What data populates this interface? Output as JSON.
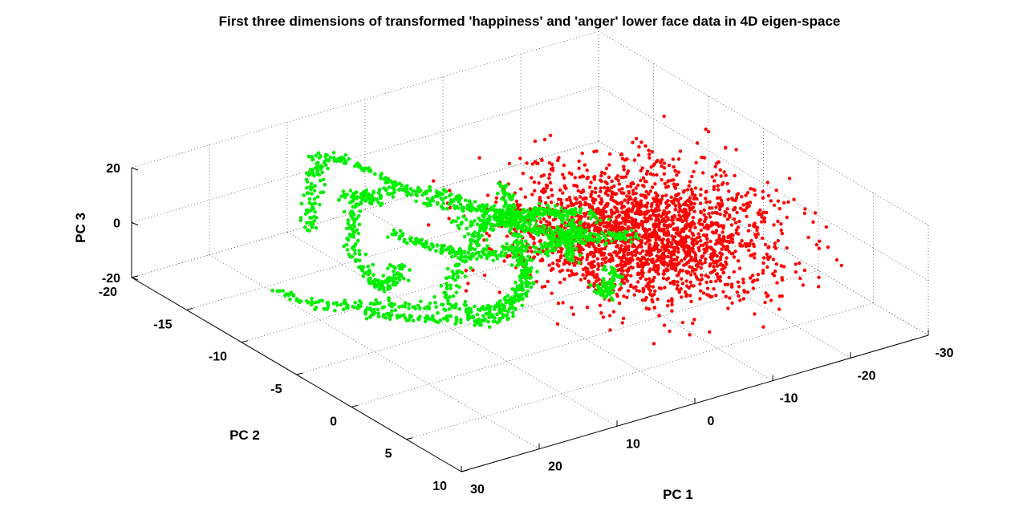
{
  "chart_data": {
    "type": "scatter",
    "title": "First three dimensions of transformed 'happiness' and 'anger' lower face data in 4D eigen-space",
    "xlabel": "PC 1",
    "ylabel": "PC 2",
    "zlabel": "PC 3",
    "xlim": [
      -30,
      30
    ],
    "ylim": [
      -20,
      10
    ],
    "zlim": [
      -20,
      20
    ],
    "xticks": [
      "-30",
      "-20",
      "-10",
      "0",
      "10",
      "20",
      "30"
    ],
    "yticks": [
      "-20",
      "-15",
      "-10",
      "-5",
      "0",
      "5",
      "10"
    ],
    "zticks": [
      "-20",
      "0",
      "20"
    ],
    "grid": true,
    "legend": "none",
    "series": [
      {
        "color": "#ff0000",
        "approx_points": 2200,
        "x_mean": -10,
        "x_sd": 6.5,
        "y_mean": -2,
        "y_sd": 3.8,
        "z_mean": 5,
        "z_sd": 6.5
      },
      {
        "color": "#00ee00",
        "trajectories": [
          [
            [
              8,
              -13,
              6
            ],
            [
              8,
              -15,
              3
            ],
            [
              10,
              -14,
              -2
            ],
            [
              13,
              -12,
              -5
            ],
            [
              16,
              -8,
              -4
            ],
            [
              18,
              -6,
              0
            ],
            [
              17,
              -5,
              4
            ],
            [
              14,
              -7,
              2
            ]
          ],
          [
            [
              10,
              -15,
              4
            ],
            [
              9,
              -13,
              10
            ],
            [
              6,
              -11,
              13
            ],
            [
              3,
              -10,
              11
            ],
            [
              0,
              -8,
              7
            ],
            [
              -2,
              -6,
              4
            ],
            [
              -4,
              -4,
              2
            ],
            [
              -2,
              -3,
              0
            ]
          ],
          [
            [
              20,
              -6,
              -8
            ],
            [
              17,
              -5,
              -10
            ],
            [
              13,
              -4,
              -12
            ],
            [
              9,
              -3,
              -12
            ],
            [
              5,
              -3,
              -10
            ],
            [
              2,
              -4,
              -6
            ],
            [
              0,
              -6,
              -3
            ]
          ],
          [
            [
              25,
              -10,
              -6
            ],
            [
              22,
              -9,
              -10
            ],
            [
              18,
              -8,
              -12
            ],
            [
              14,
              -7,
              -13
            ],
            [
              10,
              -5,
              -12
            ],
            [
              7,
              -3,
              -10
            ]
          ],
          [
            [
              4,
              -12,
              5
            ],
            [
              3,
              -9,
              9
            ],
            [
              2,
              -7,
              12
            ],
            [
              0,
              -6,
              10
            ],
            [
              -3,
              -7,
              6
            ],
            [
              -6,
              -8,
              3
            ],
            [
              -9,
              -8,
              0
            ],
            [
              -12,
              -7,
              -2
            ]
          ],
          [
            [
              6,
              -8,
              8
            ],
            [
              3,
              -6,
              11
            ],
            [
              1,
              -4,
              12
            ],
            [
              -2,
              -3,
              9
            ],
            [
              -5,
              -4,
              5
            ],
            [
              -7,
              -6,
              2
            ],
            [
              -8,
              -9,
              -1
            ]
          ],
          [
            [
              16,
              -14,
              0
            ],
            [
              14,
              -15,
              6
            ],
            [
              12,
              -16,
              11
            ],
            [
              10,
              -17,
              14
            ],
            [
              8,
              -16,
              14
            ],
            [
              6,
              -14,
              10
            ],
            [
              4,
              -13,
              6
            ]
          ],
          [
            [
              12,
              -2,
              -8
            ],
            [
              9,
              -1,
              -7
            ],
            [
              6,
              -2,
              -5
            ],
            [
              3,
              -3,
              -2
            ],
            [
              1,
              -5,
              1
            ],
            [
              -1,
              -7,
              3
            ],
            [
              -3,
              -9,
              5
            ],
            [
              -5,
              -11,
              6
            ]
          ],
          [
            [
              0,
              -4,
              2
            ],
            [
              -3,
              -5,
              0
            ],
            [
              -6,
              -6,
              -3
            ],
            [
              -9,
              -6,
              -5
            ],
            [
              -11,
              -5,
              -4
            ],
            [
              -12,
              -4,
              -2
            ]
          ],
          [
            [
              14,
              -3,
              -2
            ],
            [
              11,
              -4,
              3
            ],
            [
              8,
              -5,
              7
            ],
            [
              5,
              -6,
              9
            ],
            [
              2,
              -7,
              8
            ],
            [
              -1,
              -8,
              5
            ],
            [
              -4,
              -9,
              3
            ]
          ],
          [
            [
              -2,
              0,
              -6
            ],
            [
              -4,
              -1,
              -8
            ],
            [
              -6,
              -2,
              -9
            ],
            [
              -8,
              -3,
              -8
            ]
          ],
          [
            [
              9,
              -11,
              0
            ],
            [
              7,
              -10,
              -3
            ],
            [
              5,
              -9,
              -5
            ],
            [
              3,
              -8,
              -6
            ],
            [
              1,
              -7,
              -4
            ],
            [
              -1,
              -6,
              -1
            ]
          ]
        ]
      }
    ]
  }
}
